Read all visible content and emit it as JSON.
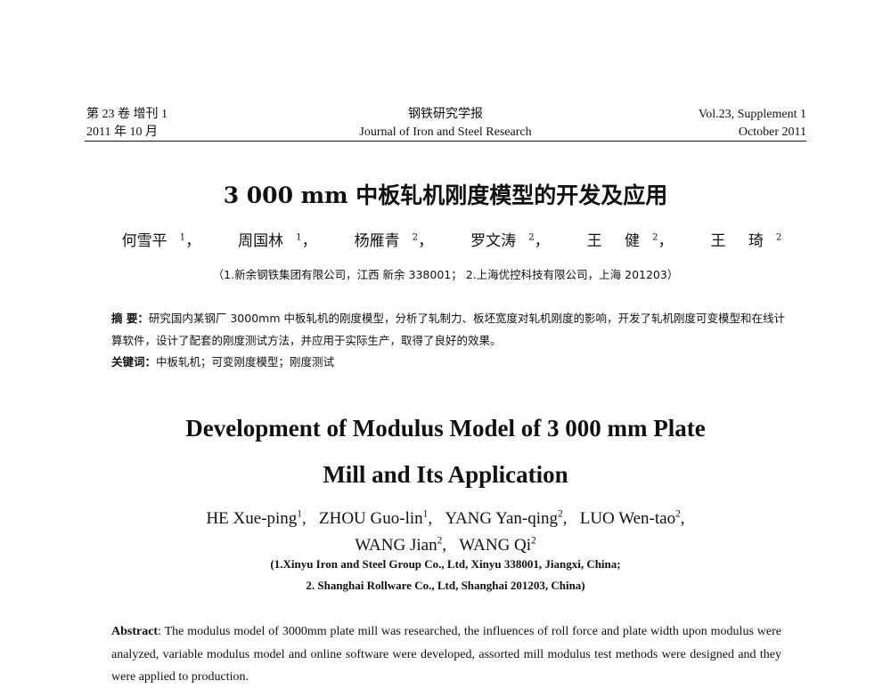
{
  "header": {
    "left_line1": "第 23 卷 增刊 1",
    "left_line2": "2011 年 10 月",
    "center_line1": "钢铁研究学报",
    "center_line2": "Journal of Iron and Steel Research",
    "right_line1": "Vol.23, Supplement 1",
    "right_line2": "October 2011"
  },
  "cn": {
    "title": "3 000 mm 中板轧机刚度模型的开发及应用",
    "authors": [
      {
        "name": "何雪平",
        "sup": "1"
      },
      {
        "name": "周国林",
        "sup": "1"
      },
      {
        "name": "杨雁青",
        "sup": "2"
      },
      {
        "name": "罗文涛",
        "sup": "2"
      },
      {
        "name": "王 健",
        "sup": "2"
      },
      {
        "name": "王 琦",
        "sup": "2"
      }
    ],
    "affiliation": "（1.新余钢铁集团有限公司，江西 新余 338001； 2.上海优控科技有限公司，上海 201203）",
    "abstract_label": "摘 要：",
    "abstract": "研究国内某钢厂 3000mm 中板轧机的刚度模型，分析了轧制力、板坯宽度对轧机刚度的影响，开发了轧机刚度可变模型和在线计算软件，设计了配套的刚度测试方法，并应用于实际生产，取得了良好的效果。",
    "keywords_label": "关键词：",
    "keywords": "中板轧机；可变刚度模型；刚度测试"
  },
  "en": {
    "title_line1": "Development of Modulus Model of 3 000 mm Plate",
    "title_line2": "Mill and Its Application",
    "authors_line1": [
      {
        "name": "HE Xue-ping",
        "sup": "1"
      },
      {
        "name": "ZHOU Guo-lin",
        "sup": "1"
      },
      {
        "name": "YANG Yan-qing",
        "sup": "2"
      },
      {
        "name": "LUO Wen-tao",
        "sup": "2"
      }
    ],
    "authors_line2": [
      {
        "name": "WANG Jian",
        "sup": "2"
      },
      {
        "name": "WANG Qi",
        "sup": "2"
      }
    ],
    "affiliation_line1": "(1.Xinyu Iron and Steel Group Co., Ltd, Xinyu 338001, Jiangxi, China;",
    "affiliation_line2": "2. Shanghai Rollware Co., Ltd, Shanghai 201203, China)",
    "abstract_label": "Abstract",
    "abstract": ": The modulus model of 3000mm plate mill was researched, the influences of roll force and plate width upon modulus were analyzed, variable modulus model and online software were developed, assorted mill modulus test methods were designed and they were applied to production."
  }
}
